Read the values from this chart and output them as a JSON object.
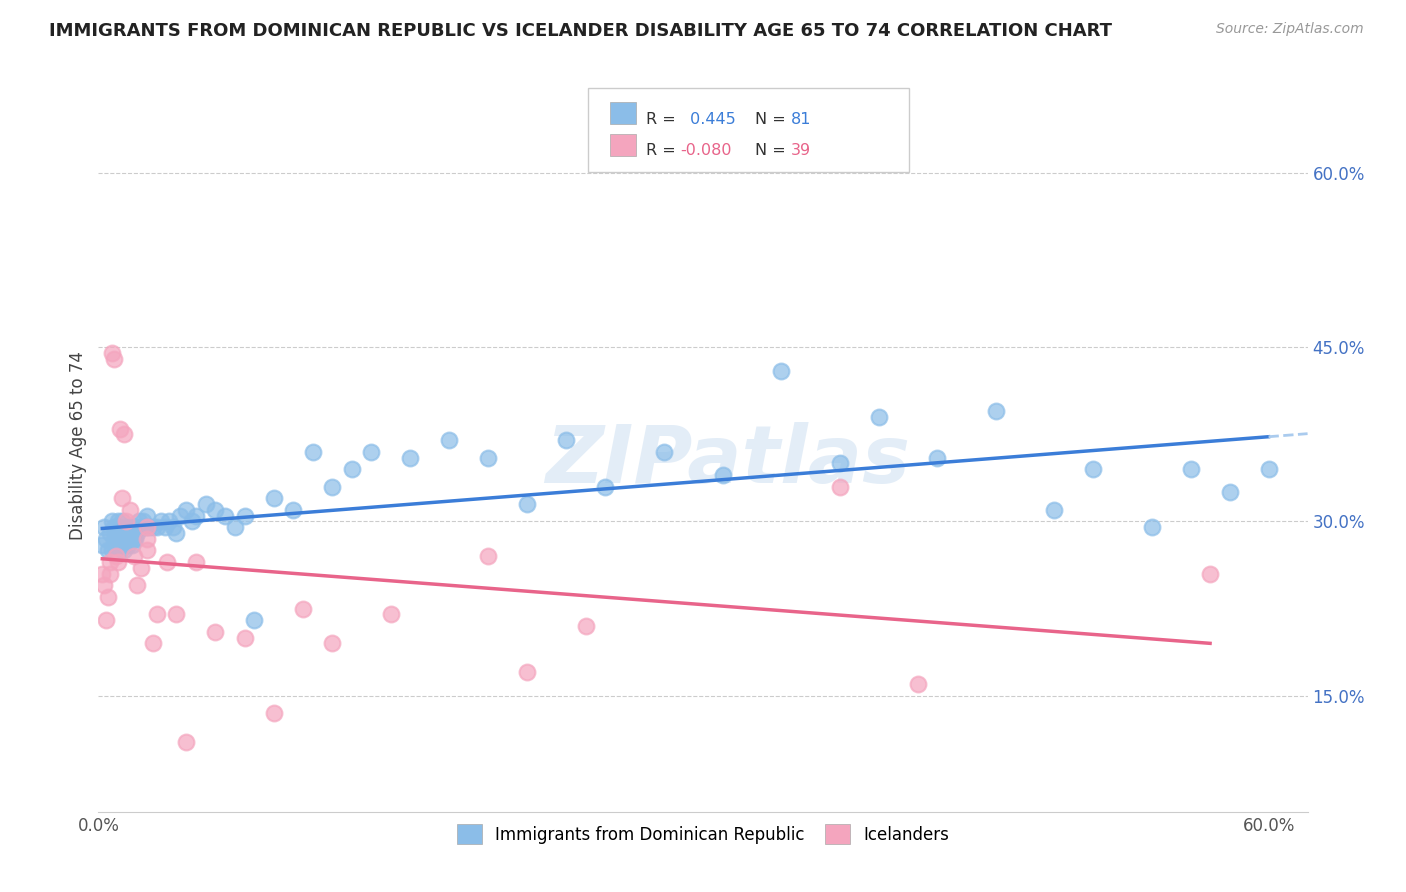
{
  "title": "IMMIGRANTS FROM DOMINICAN REPUBLIC VS ICELANDER DISABILITY AGE 65 TO 74 CORRELATION CHART",
  "source": "Source: ZipAtlas.com",
  "ylabel": "Disability Age 65 to 74",
  "yaxis_labels": [
    "15.0%",
    "30.0%",
    "45.0%",
    "60.0%"
  ],
  "xlim": [
    0.0,
    0.62
  ],
  "ylim": [
    0.05,
    0.68
  ],
  "blue_R": 0.445,
  "blue_N": 81,
  "pink_R": -0.08,
  "pink_N": 39,
  "blue_color": "#8BBDE8",
  "pink_color": "#F4A5BE",
  "blue_line_color": "#3B7DD8",
  "pink_line_color": "#E8648A",
  "legend_label_blue": "Immigrants from Dominican Republic",
  "legend_label_pink": "Icelanders",
  "watermark": "ZIPatlas",
  "blue_x": [
    0.002,
    0.003,
    0.004,
    0.005,
    0.006,
    0.007,
    0.007,
    0.008,
    0.008,
    0.009,
    0.009,
    0.01,
    0.01,
    0.01,
    0.011,
    0.011,
    0.012,
    0.012,
    0.013,
    0.013,
    0.014,
    0.014,
    0.015,
    0.015,
    0.016,
    0.016,
    0.017,
    0.017,
    0.018,
    0.018,
    0.019,
    0.019,
    0.02,
    0.021,
    0.022,
    0.023,
    0.024,
    0.025,
    0.026,
    0.028,
    0.03,
    0.032,
    0.034,
    0.036,
    0.038,
    0.04,
    0.042,
    0.045,
    0.048,
    0.05,
    0.055,
    0.06,
    0.065,
    0.07,
    0.075,
    0.08,
    0.09,
    0.1,
    0.11,
    0.12,
    0.13,
    0.14,
    0.16,
    0.18,
    0.2,
    0.22,
    0.24,
    0.26,
    0.29,
    0.32,
    0.35,
    0.38,
    0.4,
    0.43,
    0.46,
    0.49,
    0.51,
    0.54,
    0.56,
    0.58,
    0.6
  ],
  "blue_y": [
    0.28,
    0.295,
    0.285,
    0.275,
    0.29,
    0.275,
    0.3,
    0.285,
    0.295,
    0.275,
    0.285,
    0.28,
    0.295,
    0.3,
    0.275,
    0.29,
    0.285,
    0.3,
    0.275,
    0.29,
    0.285,
    0.295,
    0.28,
    0.29,
    0.285,
    0.295,
    0.28,
    0.29,
    0.285,
    0.295,
    0.285,
    0.295,
    0.29,
    0.3,
    0.295,
    0.3,
    0.295,
    0.305,
    0.295,
    0.295,
    0.295,
    0.3,
    0.295,
    0.3,
    0.295,
    0.29,
    0.305,
    0.31,
    0.3,
    0.305,
    0.315,
    0.31,
    0.305,
    0.295,
    0.305,
    0.215,
    0.32,
    0.31,
    0.36,
    0.33,
    0.345,
    0.36,
    0.355,
    0.37,
    0.355,
    0.315,
    0.37,
    0.33,
    0.36,
    0.34,
    0.43,
    0.35,
    0.39,
    0.355,
    0.395,
    0.31,
    0.345,
    0.295,
    0.345,
    0.325,
    0.345
  ],
  "pink_x": [
    0.002,
    0.003,
    0.004,
    0.005,
    0.006,
    0.006,
    0.007,
    0.008,
    0.009,
    0.01,
    0.011,
    0.012,
    0.013,
    0.014,
    0.016,
    0.018,
    0.02,
    0.022,
    0.025,
    0.025,
    0.025,
    0.028,
    0.03,
    0.035,
    0.04,
    0.045,
    0.05,
    0.06,
    0.075,
    0.09,
    0.105,
    0.12,
    0.15,
    0.2,
    0.22,
    0.25,
    0.38,
    0.42,
    0.57
  ],
  "pink_y": [
    0.255,
    0.245,
    0.215,
    0.235,
    0.255,
    0.265,
    0.445,
    0.44,
    0.27,
    0.265,
    0.38,
    0.32,
    0.375,
    0.3,
    0.31,
    0.27,
    0.245,
    0.26,
    0.275,
    0.285,
    0.295,
    0.195,
    0.22,
    0.265,
    0.22,
    0.11,
    0.265,
    0.205,
    0.2,
    0.135,
    0.225,
    0.195,
    0.22,
    0.27,
    0.17,
    0.21,
    0.33,
    0.16,
    0.255
  ]
}
